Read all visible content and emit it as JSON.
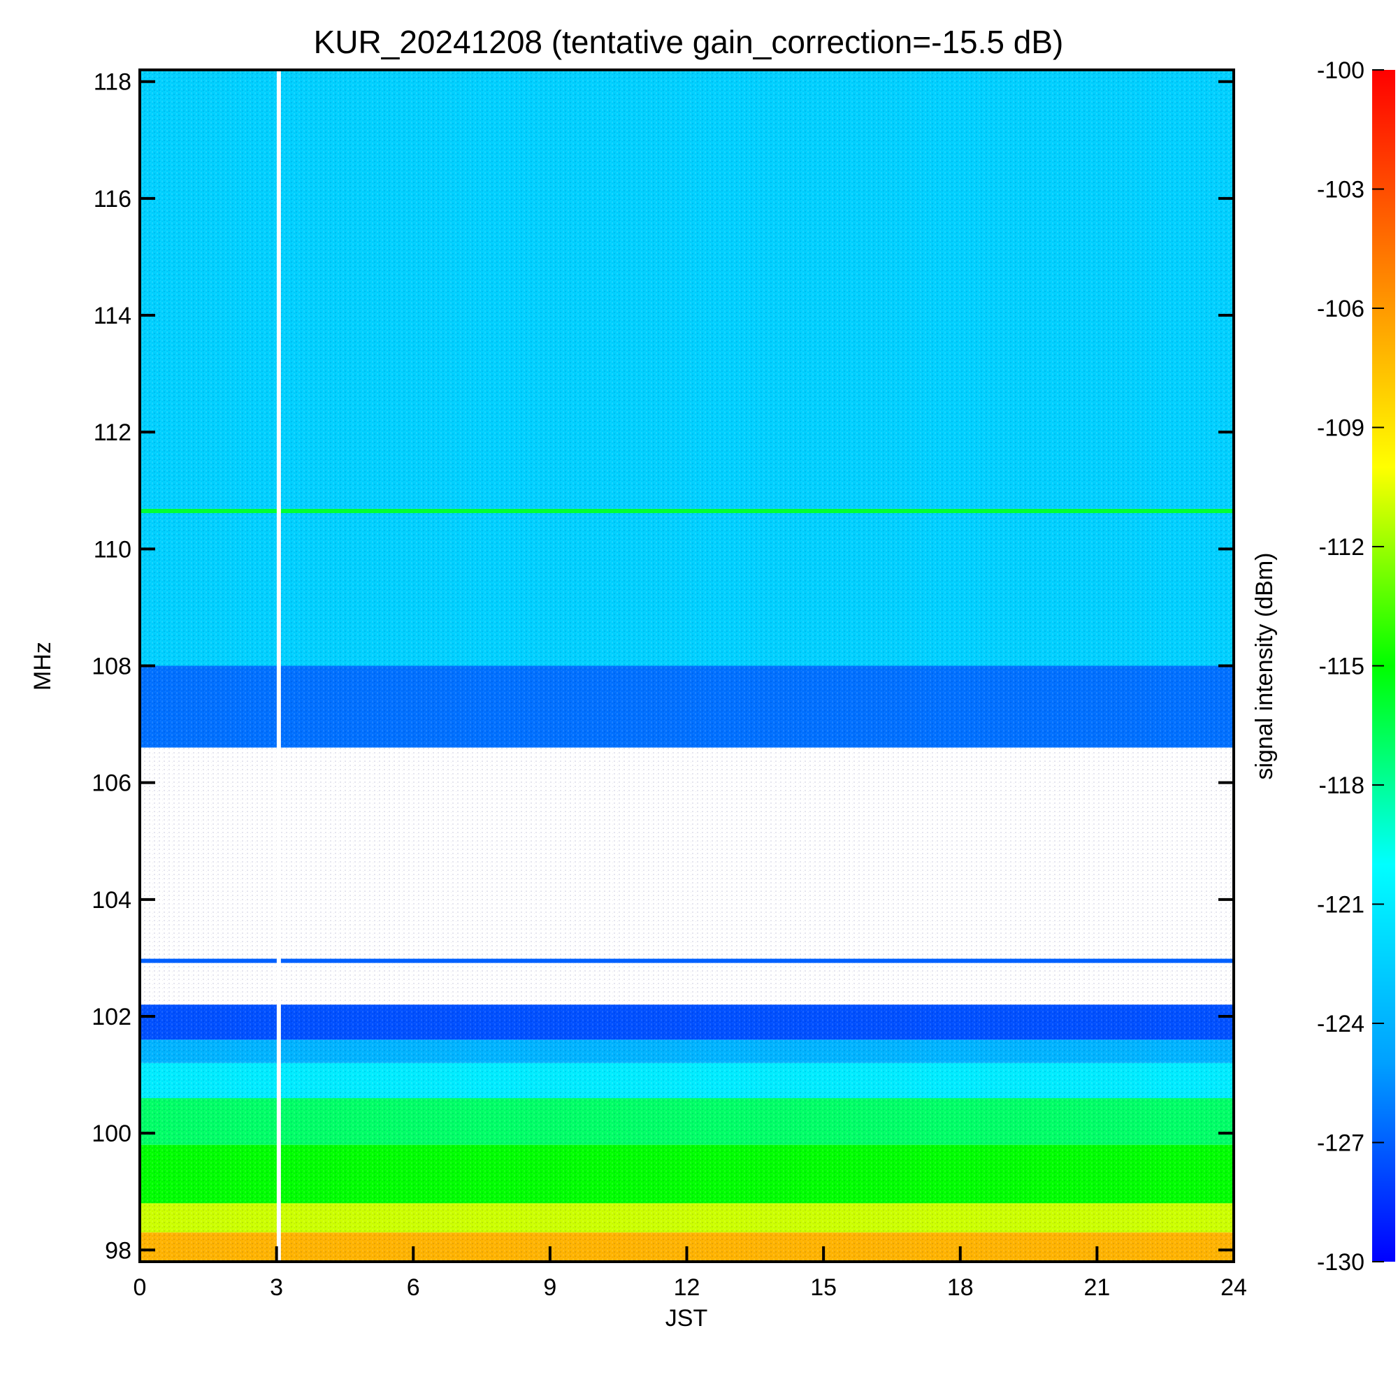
{
  "chart_data": {
    "type": "heatmap",
    "title": "KUR_20241208 (tentative gain_correction=-15.5 dB)",
    "xlabel": "JST",
    "ylabel": "MHz",
    "colorbar_label": "signal intensity (dBm)",
    "xlim": [
      0,
      24
    ],
    "ylim": [
      97.8,
      118.2
    ],
    "x_ticks": [
      0,
      3,
      6,
      9,
      12,
      15,
      18,
      21,
      24
    ],
    "y_ticks": [
      98,
      100,
      102,
      104,
      106,
      108,
      110,
      112,
      114,
      116,
      118
    ],
    "colorbar_range": [
      -130,
      -100
    ],
    "colorbar_ticks": [
      -100,
      -103,
      -106,
      -109,
      -112,
      -115,
      -118,
      -121,
      -124,
      -127,
      -130
    ],
    "colormap": [
      "#0000ff",
      "#00a0ff",
      "#00ffff",
      "#00ff00",
      "#ffff00",
      "#ff8000",
      "#ff0000"
    ],
    "missing_data_time_jst": 3.05,
    "bands": [
      {
        "f_low": 108.0,
        "f_high": 118.2,
        "dbm": -122.5
      },
      {
        "f_low": 106.6,
        "f_high": 108.0,
        "dbm": -126.5
      },
      {
        "f_low": 102.2,
        "f_high": 106.3,
        "dbm": null
      },
      {
        "f_low": 101.6,
        "f_high": 102.2,
        "dbm": -127.5
      },
      {
        "f_low": 101.2,
        "f_high": 101.6,
        "dbm": -124
      },
      {
        "f_low": 100.6,
        "f_high": 101.2,
        "dbm": -121
      },
      {
        "f_low": 99.8,
        "f_high": 100.6,
        "dbm": -117
      },
      {
        "f_low": 98.8,
        "f_high": 99.8,
        "dbm": -115
      },
      {
        "f_low": 98.3,
        "f_high": 98.8,
        "dbm": -111
      },
      {
        "f_low": 97.8,
        "f_high": 98.3,
        "dbm": -107
      }
    ],
    "lines": [
      {
        "freq": 110.65,
        "dbm": -116
      },
      {
        "freq": 102.95,
        "dbm": -127
      }
    ]
  }
}
